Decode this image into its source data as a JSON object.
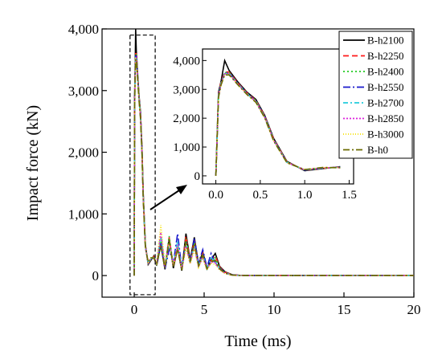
{
  "chart_data": {
    "type": "line",
    "xlabel": "Time (ms)",
    "ylabel": "Impact force (kN)",
    "xlim": [
      -2.3,
      20
    ],
    "ylim": [
      -350,
      4000
    ],
    "xticks": [
      0,
      5,
      10,
      15,
      20
    ],
    "xtick_labels": [
      "0",
      "5",
      "10",
      "15",
      "20"
    ],
    "yticks": [
      0,
      1000,
      2000,
      3000,
      4000
    ],
    "ytick_labels": [
      "0",
      "1,000",
      "2,000",
      "3,000",
      "4,000"
    ],
    "legend_placement": "top-right",
    "zoom_box": {
      "x_range": [
        -0.3,
        1.5
      ],
      "y_range": [
        -310,
        3900
      ]
    },
    "inset": {
      "xlim": [
        -0.15,
        1.55
      ],
      "ylim": [
        -280,
        4400
      ],
      "xticks": [
        0,
        0.5,
        1.0,
        1.5
      ],
      "xtick_labels": [
        "0.0",
        "0.5",
        "1.0",
        "1.5"
      ],
      "yticks": [
        0,
        1000,
        2000,
        3000,
        4000
      ],
      "ytick_labels": [
        "0",
        "1,000",
        "2,000",
        "3,000",
        "4,000"
      ]
    },
    "series": [
      {
        "name": "B-h2100",
        "color": "#000000",
        "dash": "solid",
        "x": [
          0,
          0.03,
          0.06,
          0.1,
          0.15,
          0.25,
          0.35,
          0.45,
          0.55,
          0.65,
          0.8,
          1.0,
          1.2,
          1.4,
          1.6,
          1.9,
          2.2,
          2.5,
          2.8,
          3.1,
          3.4,
          3.7,
          4.0,
          4.3,
          4.6,
          4.9,
          5.2,
          5.5,
          5.8,
          6.1,
          6.5,
          7.0,
          7.5,
          8.0,
          9.0,
          10,
          12,
          14,
          16,
          18,
          20
        ],
        "y": [
          0,
          2900,
          3300,
          4000,
          3650,
          3250,
          2900,
          2650,
          2100,
          1300,
          500,
          180,
          250,
          320,
          160,
          500,
          100,
          600,
          120,
          450,
          80,
          680,
          250,
          620,
          180,
          380,
          120,
          260,
          360,
          150,
          60,
          15,
          5,
          0,
          0,
          0,
          0,
          0,
          0,
          0,
          0
        ]
      },
      {
        "name": "B-h2250",
        "color": "#ff1a1a",
        "dash": "7,4",
        "x": [
          0,
          0.03,
          0.06,
          0.1,
          0.15,
          0.25,
          0.35,
          0.45,
          0.55,
          0.65,
          0.8,
          1.0,
          1.2,
          1.4,
          1.6,
          1.9,
          2.2,
          2.5,
          2.8,
          3.1,
          3.4,
          3.7,
          4.0,
          4.3,
          4.6,
          4.9,
          5.2,
          5.5,
          5.8,
          6.1,
          6.5,
          7.0,
          7.5,
          8.0,
          9.0,
          10,
          12,
          14,
          16,
          18,
          20
        ],
        "y": [
          0,
          2850,
          3280,
          3600,
          3600,
          3220,
          2880,
          2620,
          2080,
          1280,
          490,
          190,
          260,
          310,
          170,
          550,
          120,
          620,
          140,
          470,
          90,
          640,
          240,
          580,
          170,
          360,
          110,
          240,
          320,
          140,
          55,
          12,
          4,
          0,
          0,
          0,
          0,
          0,
          0,
          0,
          0
        ]
      },
      {
        "name": "B-h2400",
        "color": "#22cc22",
        "dash": "2,3",
        "x": [
          0,
          0.03,
          0.06,
          0.1,
          0.15,
          0.25,
          0.35,
          0.45,
          0.55,
          0.65,
          0.8,
          1.0,
          1.2,
          1.4,
          1.6,
          1.9,
          2.2,
          2.5,
          2.8,
          3.1,
          3.4,
          3.7,
          4.0,
          4.3,
          4.6,
          4.9,
          5.2,
          5.5,
          5.8,
          6.1,
          6.5,
          7.0,
          7.5,
          8.0,
          9.0,
          10,
          12,
          14,
          16,
          18,
          20
        ],
        "y": [
          0,
          2820,
          3250,
          3580,
          3580,
          3200,
          2870,
          2600,
          2060,
          1260,
          480,
          195,
          265,
          305,
          175,
          600,
          140,
          640,
          160,
          480,
          100,
          600,
          230,
          540,
          160,
          340,
          100,
          220,
          290,
          130,
          50,
          10,
          3,
          0,
          0,
          0,
          0,
          0,
          0,
          0,
          0
        ]
      },
      {
        "name": "B-h2550",
        "color": "#1a1acc",
        "dash": "9,3,2,3",
        "x": [
          0,
          0.03,
          0.06,
          0.1,
          0.15,
          0.25,
          0.35,
          0.45,
          0.55,
          0.65,
          0.8,
          1.0,
          1.2,
          1.4,
          1.6,
          1.9,
          2.2,
          2.5,
          2.8,
          3.1,
          3.4,
          3.7,
          4.0,
          4.3,
          4.6,
          4.9,
          5.2,
          5.5,
          5.8,
          6.1,
          6.5,
          7.0,
          7.5,
          8.0,
          9.0,
          10,
          12,
          14,
          16,
          18,
          20
        ],
        "y": [
          0,
          2800,
          3230,
          3560,
          3560,
          3190,
          2860,
          2590,
          2050,
          1250,
          470,
          200,
          270,
          300,
          180,
          520,
          110,
          420,
          200,
          680,
          120,
          560,
          220,
          600,
          200,
          420,
          130,
          360,
          200,
          120,
          45,
          10,
          3,
          0,
          0,
          0,
          0,
          0,
          0,
          0,
          0
        ]
      },
      {
        "name": "B-h2700",
        "color": "#22ccdd",
        "dash": "6,3,2,3",
        "x": [
          0,
          0.03,
          0.06,
          0.1,
          0.15,
          0.25,
          0.35,
          0.45,
          0.55,
          0.65,
          0.8,
          1.0,
          1.2,
          1.4,
          1.6,
          1.9,
          2.2,
          2.5,
          2.8,
          3.1,
          3.4,
          3.7,
          4.0,
          4.3,
          4.6,
          4.9,
          5.2,
          5.5,
          5.8,
          6.1,
          6.5,
          7.0,
          7.5,
          8.0,
          9.0,
          10,
          12,
          14,
          16,
          18,
          20
        ],
        "y": [
          0,
          2780,
          3210,
          3550,
          3550,
          3180,
          2850,
          2580,
          2040,
          1240,
          465,
          205,
          275,
          295,
          185,
          650,
          160,
          520,
          180,
          560,
          110,
          520,
          210,
          500,
          150,
          330,
          110,
          280,
          240,
          110,
          40,
          8,
          2,
          0,
          0,
          0,
          0,
          0,
          0,
          0,
          0
        ]
      },
      {
        "name": "B-h2850",
        "color": "#dd22dd",
        "dash": "2,2",
        "x": [
          0,
          0.03,
          0.06,
          0.1,
          0.15,
          0.25,
          0.35,
          0.45,
          0.55,
          0.65,
          0.8,
          1.0,
          1.2,
          1.4,
          1.6,
          1.9,
          2.2,
          2.5,
          2.8,
          3.1,
          3.4,
          3.7,
          4.0,
          4.3,
          4.6,
          4.9,
          5.2,
          5.5,
          5.8,
          6.1,
          6.5,
          7.0,
          7.5,
          8.0,
          9.0,
          10,
          12,
          14,
          16,
          18,
          20
        ],
        "y": [
          0,
          2760,
          3200,
          3540,
          3540,
          3170,
          2840,
          2570,
          2030,
          1230,
          460,
          210,
          280,
          290,
          190,
          700,
          150,
          560,
          170,
          500,
          100,
          480,
          200,
          460,
          140,
          300,
          100,
          230,
          200,
          100,
          35,
          8,
          2,
          0,
          0,
          0,
          0,
          0,
          0,
          0,
          0
        ]
      },
      {
        "name": "B-h3000",
        "color": "#f5e000",
        "dash": "1,2",
        "x": [
          0,
          0.03,
          0.06,
          0.1,
          0.15,
          0.25,
          0.35,
          0.45,
          0.55,
          0.65,
          0.8,
          1.0,
          1.2,
          1.4,
          1.6,
          1.9,
          2.2,
          2.5,
          2.8,
          3.1,
          3.4,
          3.7,
          4.0,
          4.3,
          4.6,
          4.9,
          5.2,
          5.5,
          5.8,
          6.1,
          6.5,
          7.0,
          7.5,
          8.0,
          9.0,
          10,
          12,
          14,
          16,
          18,
          20
        ],
        "y": [
          0,
          2740,
          3180,
          3520,
          3520,
          3160,
          2830,
          2560,
          2020,
          1220,
          455,
          215,
          285,
          285,
          195,
          820,
          170,
          520,
          160,
          460,
          90,
          440,
          190,
          420,
          130,
          280,
          90,
          200,
          180,
          90,
          30,
          6,
          2,
          0,
          0,
          0,
          0,
          0,
          0,
          0,
          0
        ]
      },
      {
        "name": "B-h0",
        "color": "#6b6b00",
        "dash": "8,3,2,3",
        "x": [
          0,
          0.03,
          0.06,
          0.1,
          0.15,
          0.25,
          0.35,
          0.45,
          0.55,
          0.65,
          0.8,
          1.0,
          1.2,
          1.4,
          1.6,
          1.9,
          2.2,
          2.5,
          2.8,
          3.1,
          3.4,
          3.7,
          4.0,
          4.3,
          4.6,
          4.9,
          5.2,
          5.5,
          5.8,
          6.1,
          6.5,
          7.0,
          7.5,
          8.0,
          9.0,
          10,
          12,
          14,
          16,
          18,
          20
        ],
        "y": [
          0,
          2720,
          3160,
          3500,
          3500,
          3150,
          2820,
          2550,
          2010,
          1210,
          450,
          220,
          290,
          280,
          200,
          480,
          120,
          580,
          150,
          430,
          90,
          560,
          220,
          520,
          160,
          330,
          110,
          220,
          250,
          110,
          40,
          8,
          2,
          0,
          0,
          0,
          0,
          0,
          0,
          0,
          0
        ]
      }
    ]
  }
}
